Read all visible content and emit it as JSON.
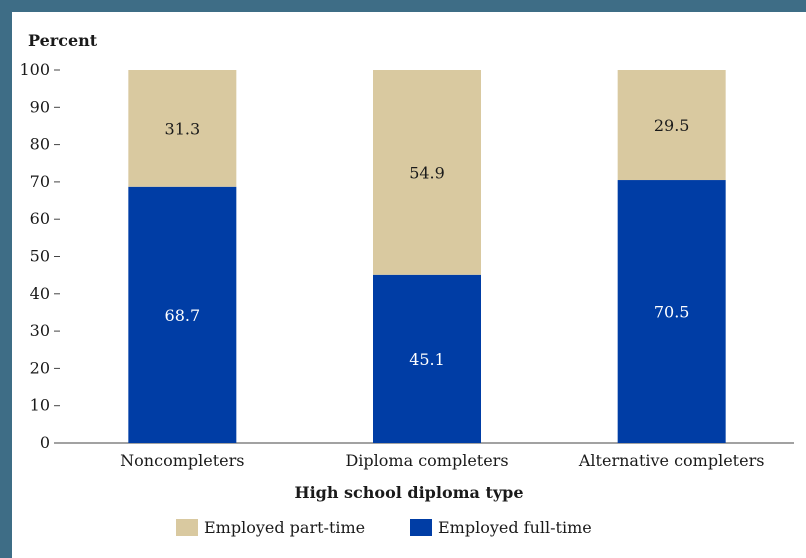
{
  "chart_data": {
    "type": "bar",
    "stacked": true,
    "ylabel": "Percent",
    "xlabel": "High school diploma type",
    "ylim": [
      0,
      100
    ],
    "yticks": [
      0,
      10,
      20,
      30,
      40,
      50,
      60,
      70,
      80,
      90,
      100
    ],
    "categories": [
      "Noncompleters",
      "Diploma completers",
      "Alternative completers"
    ],
    "series": [
      {
        "name": "Employed full-time",
        "values": [
          68.7,
          45.1,
          70.5
        ],
        "color": "#003da5",
        "label_color": "#ffffff"
      },
      {
        "name": "Employed part-time",
        "values": [
          31.3,
          54.9,
          29.5
        ],
        "color": "#d9c9a0",
        "label_color": "#1a1a1a"
      }
    ],
    "legend": {
      "placement": "bottom",
      "entries": [
        {
          "name": "Employed part-time",
          "color": "#d9c9a0"
        },
        {
          "name": "Employed full-time",
          "color": "#003da5"
        }
      ]
    },
    "grid": false
  }
}
